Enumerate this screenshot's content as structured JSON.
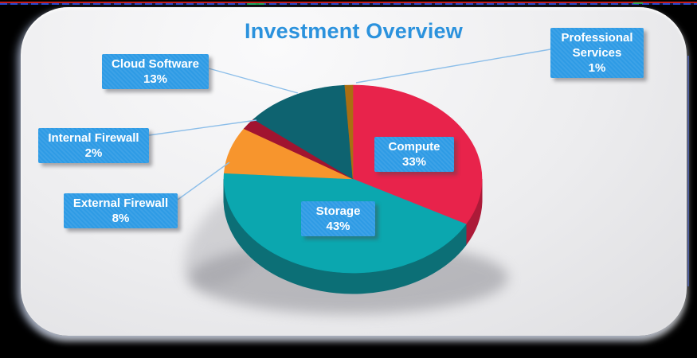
{
  "title": "Investment Overview",
  "theme": {
    "title_color": "#2B92DD",
    "label_box_color": "#2E9BE5",
    "label_text_color": "#FFFFFF",
    "leader_line_color": "#8CBEE9",
    "frame_bg": "#000000",
    "frame_top_red": "#E8241C",
    "frame_blue": "#2B50E8",
    "card_bg_light": "#FAFAFB",
    "card_bg_dark": "#DEDEE1"
  },
  "chart_data": {
    "type": "pie",
    "style": "3d",
    "title": "Investment Overview",
    "start_angle_deg": 0,
    "direction": "clockwise",
    "units": "percent",
    "slices": [
      {
        "label": "Compute",
        "value": 33,
        "pct_text": "33%",
        "color": "#E8234B",
        "side_color": "#AC1A38"
      },
      {
        "label": "Storage",
        "value": 43,
        "pct_text": "43%",
        "color": "#0BA7AF",
        "side_color": "#0C6F76"
      },
      {
        "label": "External Firewall",
        "value": 8,
        "pct_text": "8%",
        "color": "#F7952D",
        "side_color": "#B56A1E"
      },
      {
        "label": "Internal Firewall",
        "value": 2,
        "pct_text": "2%",
        "color": "#A11430",
        "side_color": "#701021"
      },
      {
        "label": "Cloud Software",
        "value": 13,
        "pct_text": "13%",
        "color": "#0E6370",
        "side_color": "#0A4650"
      },
      {
        "label": "Professional Services",
        "value": 1,
        "pct_text": "1%",
        "color": "#AA6E12",
        "side_color": "#7A4F0D"
      }
    ]
  }
}
